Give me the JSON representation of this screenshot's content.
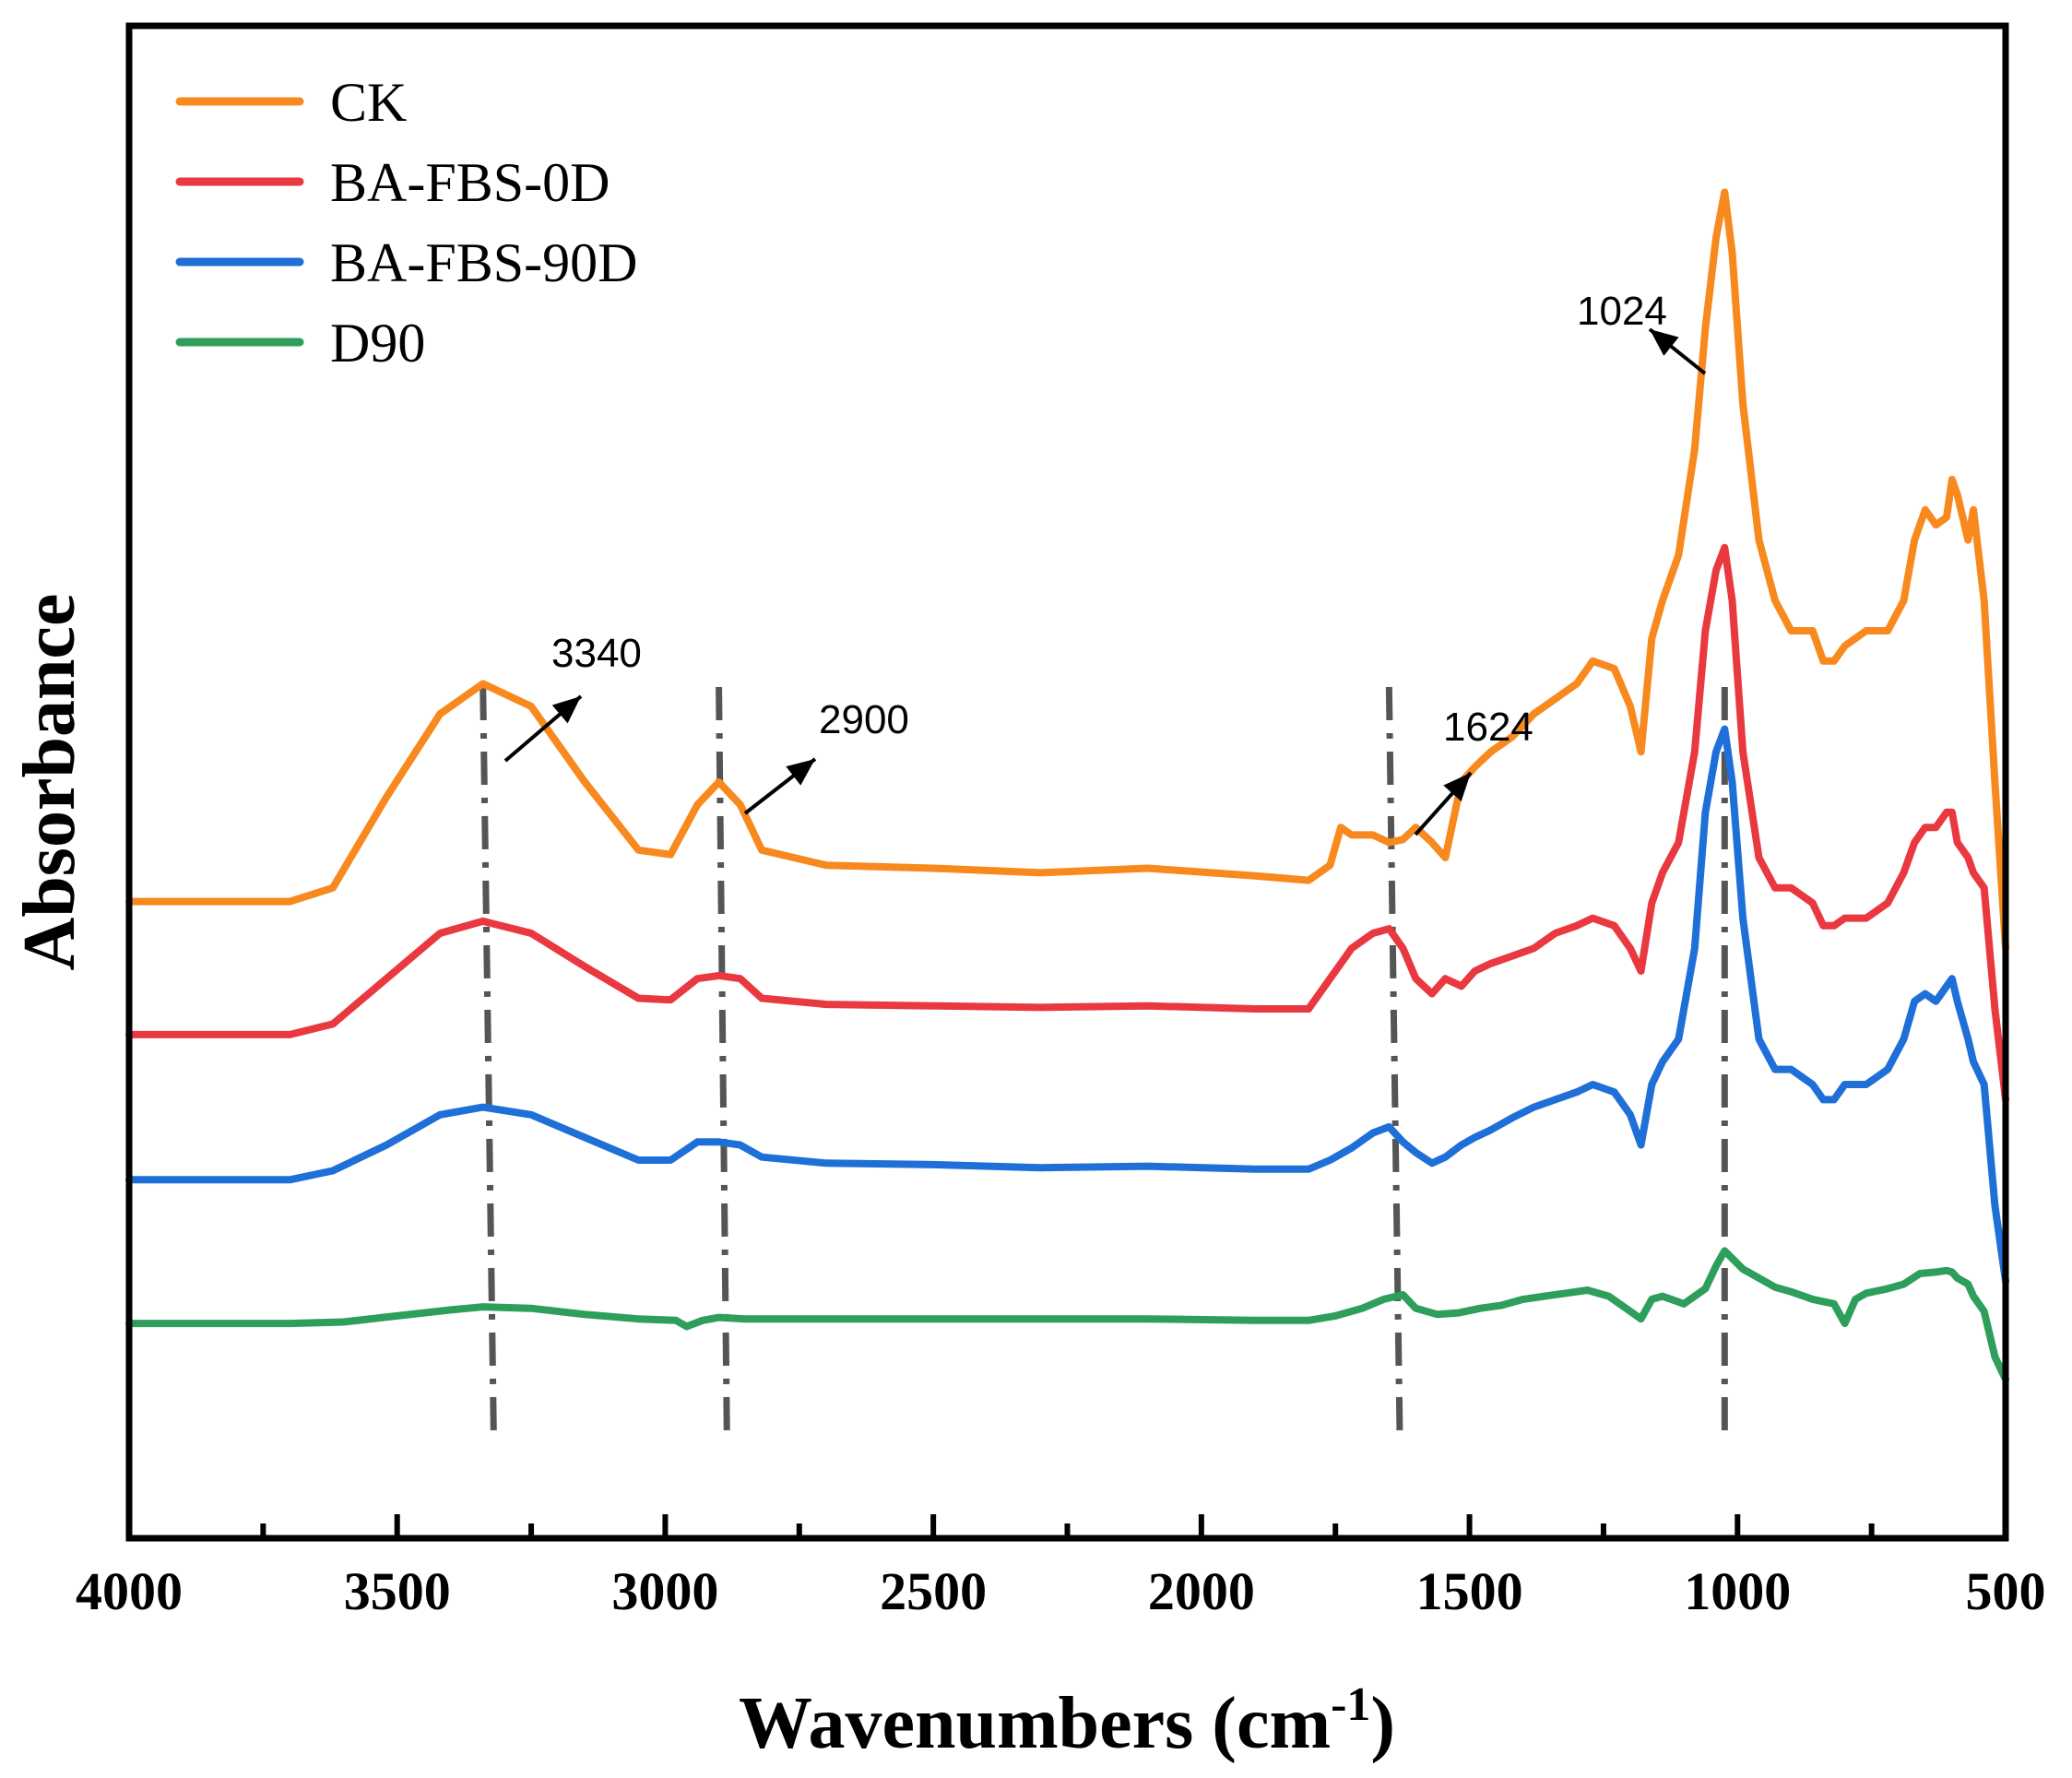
{
  "chart_data": {
    "type": "line",
    "title": "",
    "xlabel": "Wavenumbers (cm",
    "xlabel_superscript": "-1",
    "xlabel_suffix": ")",
    "ylabel": "Absorbance",
    "x_reversed": true,
    "xlim": [
      4000,
      500
    ],
    "ylim": [
      0,
      1
    ],
    "x_ticks": [
      "4000",
      "3500",
      "3000",
      "2500",
      "2000",
      "1500",
      "1000",
      "500"
    ],
    "y_ticks_shown": false,
    "grid": false,
    "legend_position": "top-left",
    "series": [
      {
        "name": "CK",
        "color": "#F7891E",
        "x": [
          4000,
          3700,
          3620,
          3520,
          3420,
          3340,
          3250,
          3150,
          3050,
          2990,
          2940,
          2900,
          2860,
          2820,
          2700,
          2500,
          2300,
          2100,
          1900,
          1800,
          1760,
          1740,
          1720,
          1680,
          1650,
          1624,
          1600,
          1570,
          1545,
          1515,
          1490,
          1460,
          1420,
          1380,
          1340,
          1300,
          1270,
          1230,
          1200,
          1180,
          1160,
          1140,
          1110,
          1080,
          1060,
          1040,
          1024,
          1010,
          990,
          960,
          930,
          900,
          880,
          860,
          840,
          820,
          800,
          760,
          720,
          690,
          670,
          650,
          630,
          610,
          600,
          590,
          570,
          560,
          540,
          520,
          500
        ],
        "y": [
          0.421,
          0.421,
          0.43,
          0.49,
          0.545,
          0.565,
          0.55,
          0.5,
          0.455,
          0.452,
          0.485,
          0.5,
          0.485,
          0.455,
          0.445,
          0.443,
          0.44,
          0.443,
          0.438,
          0.435,
          0.445,
          0.47,
          0.465,
          0.465,
          0.46,
          0.462,
          0.47,
          0.46,
          0.45,
          0.5,
          0.51,
          0.52,
          0.53,
          0.545,
          0.555,
          0.565,
          0.58,
          0.575,
          0.55,
          0.52,
          0.595,
          0.62,
          0.65,
          0.72,
          0.8,
          0.86,
          0.89,
          0.85,
          0.75,
          0.66,
          0.62,
          0.6,
          0.6,
          0.6,
          0.58,
          0.58,
          0.59,
          0.6,
          0.6,
          0.62,
          0.66,
          0.68,
          0.67,
          0.675,
          0.7,
          0.69,
          0.66,
          0.68,
          0.62,
          0.5,
          0.39
        ]
      },
      {
        "name": "BA-FBS-0D",
        "color": "#E9383F",
        "x": [
          4000,
          3700,
          3620,
          3520,
          3420,
          3340,
          3250,
          3150,
          3050,
          2990,
          2940,
          2900,
          2860,
          2820,
          2700,
          2500,
          2300,
          2100,
          1900,
          1800,
          1760,
          1720,
          1680,
          1650,
          1624,
          1600,
          1570,
          1545,
          1515,
          1490,
          1460,
          1420,
          1380,
          1340,
          1300,
          1270,
          1230,
          1200,
          1180,
          1160,
          1140,
          1110,
          1080,
          1060,
          1040,
          1024,
          1010,
          990,
          960,
          930,
          900,
          880,
          860,
          840,
          820,
          800,
          760,
          720,
          690,
          670,
          650,
          630,
          610,
          600,
          590,
          570,
          560,
          540,
          520,
          500
        ],
        "y": [
          0.333,
          0.333,
          0.34,
          0.37,
          0.4,
          0.408,
          0.4,
          0.378,
          0.357,
          0.356,
          0.37,
          0.372,
          0.37,
          0.357,
          0.353,
          0.352,
          0.351,
          0.352,
          0.35,
          0.35,
          0.37,
          0.39,
          0.4,
          0.403,
          0.39,
          0.37,
          0.36,
          0.37,
          0.365,
          0.375,
          0.38,
          0.385,
          0.39,
          0.4,
          0.405,
          0.41,
          0.405,
          0.39,
          0.375,
          0.42,
          0.44,
          0.46,
          0.52,
          0.6,
          0.64,
          0.655,
          0.62,
          0.52,
          0.45,
          0.43,
          0.43,
          0.425,
          0.42,
          0.405,
          0.405,
          0.41,
          0.41,
          0.42,
          0.44,
          0.46,
          0.47,
          0.47,
          0.48,
          0.48,
          0.46,
          0.45,
          0.44,
          0.43,
          0.35,
          0.29
        ]
      },
      {
        "name": "BA-FBS-90D",
        "color": "#1F6FD8",
        "x": [
          4000,
          3700,
          3620,
          3520,
          3420,
          3340,
          3250,
          3150,
          3050,
          2990,
          2940,
          2900,
          2860,
          2820,
          2700,
          2500,
          2300,
          2100,
          1900,
          1800,
          1760,
          1720,
          1680,
          1650,
          1624,
          1600,
          1570,
          1545,
          1515,
          1490,
          1460,
          1420,
          1380,
          1340,
          1300,
          1270,
          1230,
          1200,
          1180,
          1160,
          1140,
          1110,
          1080,
          1060,
          1040,
          1024,
          1010,
          990,
          960,
          930,
          900,
          880,
          860,
          840,
          820,
          800,
          760,
          720,
          690,
          670,
          650,
          630,
          610,
          600,
          590,
          570,
          560,
          540,
          520,
          500
        ],
        "y": [
          0.237,
          0.237,
          0.243,
          0.26,
          0.28,
          0.285,
          0.28,
          0.265,
          0.25,
          0.25,
          0.262,
          0.262,
          0.26,
          0.252,
          0.248,
          0.247,
          0.245,
          0.246,
          0.244,
          0.244,
          0.25,
          0.258,
          0.268,
          0.272,
          0.262,
          0.255,
          0.248,
          0.252,
          0.26,
          0.265,
          0.27,
          0.278,
          0.285,
          0.29,
          0.295,
          0.3,
          0.295,
          0.28,
          0.26,
          0.3,
          0.315,
          0.33,
          0.39,
          0.48,
          0.52,
          0.535,
          0.5,
          0.41,
          0.33,
          0.31,
          0.31,
          0.305,
          0.3,
          0.29,
          0.29,
          0.3,
          0.3,
          0.31,
          0.33,
          0.355,
          0.36,
          0.355,
          0.365,
          0.37,
          0.355,
          0.33,
          0.315,
          0.3,
          0.22,
          0.17
        ]
      },
      {
        "name": "D90",
        "color": "#2E9E5B",
        "x": [
          4000,
          3700,
          3600,
          3500,
          3400,
          3340,
          3250,
          3150,
          3050,
          2980,
          2960,
          2930,
          2900,
          2850,
          2700,
          2500,
          2300,
          2100,
          1900,
          1800,
          1750,
          1700,
          1660,
          1624,
          1600,
          1560,
          1520,
          1480,
          1440,
          1400,
          1360,
          1320,
          1280,
          1240,
          1200,
          1180,
          1160,
          1140,
          1100,
          1060,
          1040,
          1024,
          1010,
          990,
          960,
          930,
          900,
          860,
          820,
          800,
          780,
          760,
          720,
          690,
          660,
          630,
          610,
          600,
          590,
          570,
          560,
          540,
          520,
          500
        ],
        "y": [
          0.142,
          0.142,
          0.143,
          0.147,
          0.151,
          0.153,
          0.152,
          0.148,
          0.145,
          0.144,
          0.14,
          0.144,
          0.146,
          0.145,
          0.145,
          0.145,
          0.145,
          0.145,
          0.144,
          0.144,
          0.147,
          0.152,
          0.158,
          0.161,
          0.152,
          0.148,
          0.149,
          0.152,
          0.154,
          0.158,
          0.16,
          0.162,
          0.164,
          0.16,
          0.15,
          0.145,
          0.158,
          0.16,
          0.155,
          0.165,
          0.18,
          0.19,
          0.185,
          0.178,
          0.172,
          0.166,
          0.163,
          0.158,
          0.155,
          0.142,
          0.158,
          0.162,
          0.165,
          0.168,
          0.175,
          0.176,
          0.177,
          0.176,
          0.172,
          0.168,
          0.16,
          0.15,
          0.12,
          0.105
        ]
      }
    ],
    "guide_lines": [
      {
        "x_top": 3340,
        "x_bottom": 3320
      },
      {
        "x_top": 2900,
        "x_bottom": 2885
      },
      {
        "x_top": 1650,
        "x_bottom": 1630
      },
      {
        "x_top": 1024,
        "x_bottom": 1024
      }
    ],
    "annotations": [
      {
        "text": "3340",
        "x": 3340
      },
      {
        "text": "2900",
        "x": 2900
      },
      {
        "text": "1624",
        "x": 1624
      },
      {
        "text": "1024",
        "x": 1024
      }
    ]
  }
}
